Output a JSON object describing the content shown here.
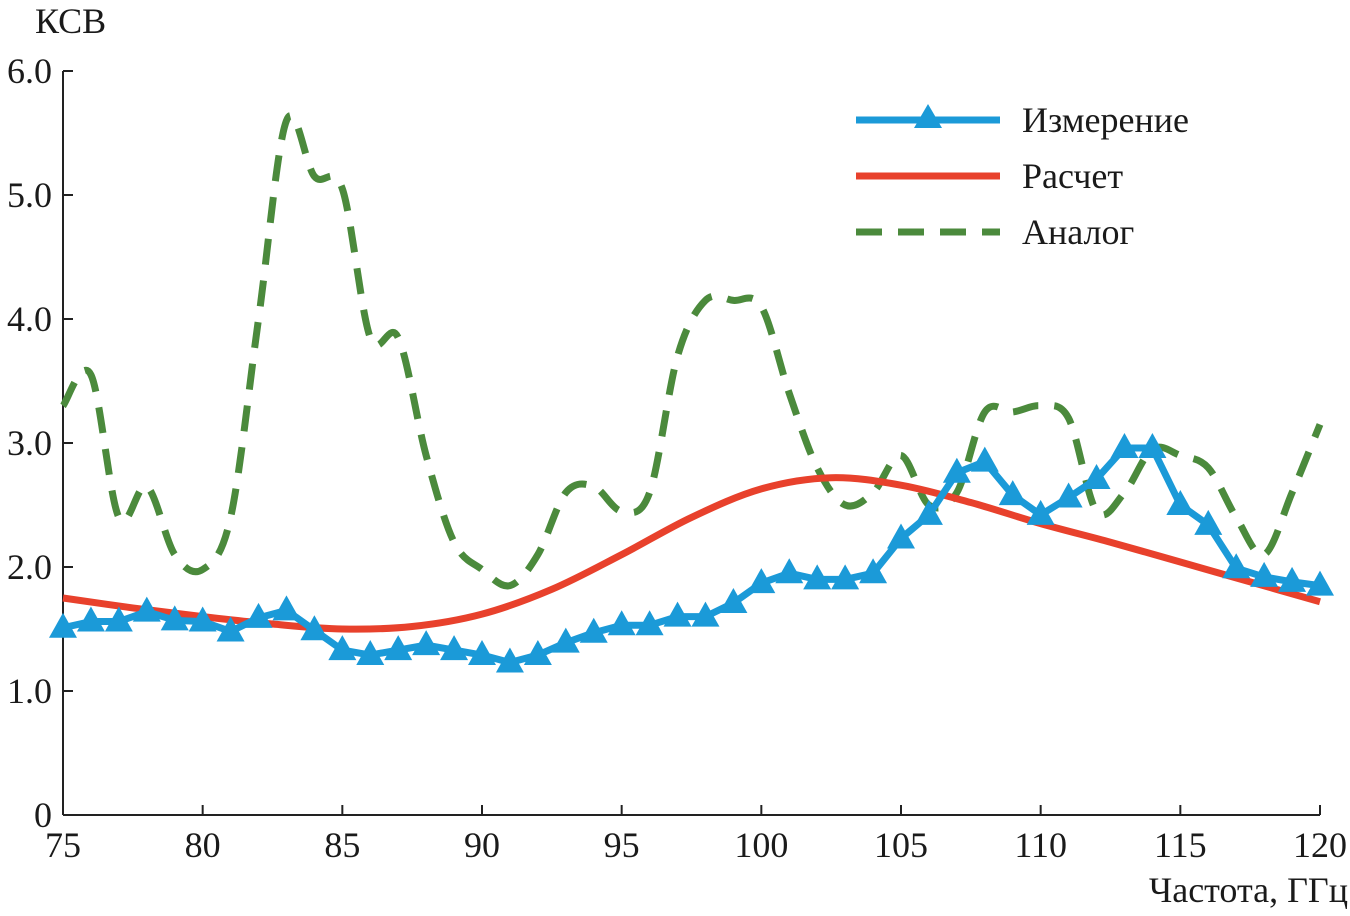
{
  "chart_data": {
    "type": "line",
    "title": "",
    "ylabel": "КСВ",
    "xlabel": "Частота, ГГц",
    "xlim": [
      75,
      120
    ],
    "ylim": [
      0,
      6
    ],
    "xticks": [
      "75",
      "80",
      "85",
      "90",
      "95",
      "100",
      "105",
      "110",
      "115",
      "120"
    ],
    "yticks": [
      "0",
      "1.0",
      "2.0",
      "3.0",
      "4.0",
      "5.0",
      "6.0"
    ],
    "grid": false,
    "legend_position": "top-right",
    "series": [
      {
        "name": "Измерение",
        "color": "#1b9ad8",
        "style": "solid-triangle-markers",
        "x": [
          75,
          76,
          77,
          78,
          79,
          80,
          81,
          82,
          83,
          84,
          85,
          86,
          87,
          88,
          89,
          90,
          91,
          92,
          93,
          94,
          95,
          96,
          97,
          98,
          99,
          100,
          101,
          102,
          103,
          104,
          105,
          106,
          107,
          108,
          109,
          110,
          111,
          112,
          113,
          114,
          115,
          116,
          117,
          118,
          119,
          120
        ],
        "y": [
          1.51,
          1.56,
          1.56,
          1.64,
          1.57,
          1.56,
          1.48,
          1.59,
          1.65,
          1.49,
          1.33,
          1.29,
          1.33,
          1.37,
          1.33,
          1.29,
          1.23,
          1.29,
          1.39,
          1.47,
          1.53,
          1.53,
          1.6,
          1.6,
          1.71,
          1.87,
          1.95,
          1.9,
          1.9,
          1.95,
          2.23,
          2.42,
          2.76,
          2.85,
          2.58,
          2.42,
          2.56,
          2.71,
          2.96,
          2.96,
          2.5,
          2.34,
          1.99,
          1.92,
          1.88,
          1.85
        ]
      },
      {
        "name": "Расчет",
        "color": "#e8412c",
        "style": "solid",
        "x": [
          75,
          77.5,
          80,
          82.5,
          85,
          87.5,
          90,
          92.5,
          95,
          97.5,
          100,
          102.5,
          105,
          107.5,
          110,
          112.5,
          115,
          117.5,
          120
        ],
        "y": [
          1.75,
          1.67,
          1.6,
          1.54,
          1.5,
          1.52,
          1.62,
          1.82,
          2.1,
          2.4,
          2.63,
          2.72,
          2.66,
          2.52,
          2.35,
          2.2,
          2.04,
          1.88,
          1.72
        ]
      },
      {
        "name": "Аналог",
        "color": "#4b8a3c",
        "style": "dashed",
        "x": [
          75,
          76,
          77,
          78,
          79,
          80,
          81,
          82,
          83,
          84,
          85,
          86,
          87,
          88,
          89,
          90,
          91,
          92,
          93,
          94,
          95,
          96,
          97,
          98,
          99,
          100,
          101,
          102,
          103,
          104,
          105,
          106,
          107,
          108,
          109,
          110,
          111,
          112,
          113,
          114,
          115,
          116,
          117,
          118,
          119,
          120
        ],
        "y": [
          3.3,
          3.55,
          2.4,
          2.65,
          2.1,
          1.98,
          2.4,
          4.0,
          5.6,
          5.15,
          5.05,
          3.85,
          3.85,
          2.9,
          2.2,
          1.98,
          1.85,
          2.1,
          2.6,
          2.65,
          2.45,
          2.6,
          3.7,
          4.15,
          4.15,
          4.1,
          3.4,
          2.8,
          2.5,
          2.6,
          2.9,
          2.5,
          2.6,
          3.25,
          3.25,
          3.3,
          3.2,
          2.45,
          2.6,
          2.95,
          2.9,
          2.8,
          2.4,
          2.1,
          2.6,
          3.15
        ]
      }
    ]
  }
}
